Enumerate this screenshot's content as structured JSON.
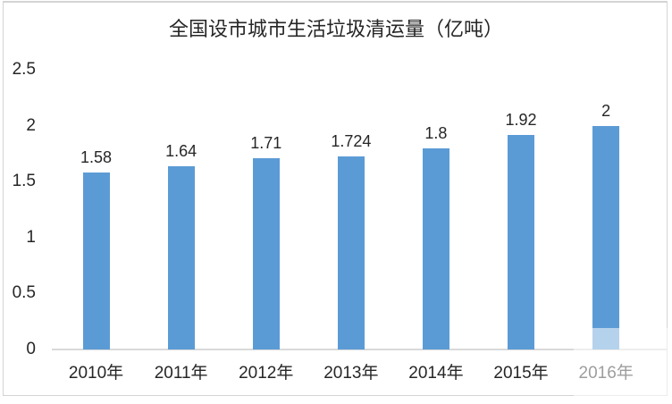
{
  "chart_data": {
    "type": "bar",
    "title": "全国设市城市生活垃圾清运量（亿吨）",
    "categories": [
      "2010年",
      "2011年",
      "2012年",
      "2013年",
      "2014年",
      "2015年",
      "2016年"
    ],
    "values": [
      1.58,
      1.64,
      1.71,
      1.724,
      1.8,
      1.92,
      2
    ],
    "data_labels": [
      "1.58",
      "1.64",
      "1.71",
      "1.724",
      "1.8",
      "1.92",
      "2"
    ],
    "xlabel": "",
    "ylabel": "",
    "ylim": [
      0,
      2.5
    ],
    "yticks": [
      0,
      0.5,
      1,
      1.5,
      2,
      2.5
    ],
    "ytick_labels": [
      "0",
      "0.5",
      "1",
      "1.5",
      "2",
      "2.5"
    ],
    "grid": false,
    "legend_position": "none",
    "data_label_position": "outside-end"
  },
  "colors": {
    "bar": "#5B9BD5",
    "text": "#262626",
    "axis_line": "#D9D9D9",
    "frame_border": "#D4D4D4",
    "watermark_overlay": "rgba(255,255,255,0.55)"
  }
}
